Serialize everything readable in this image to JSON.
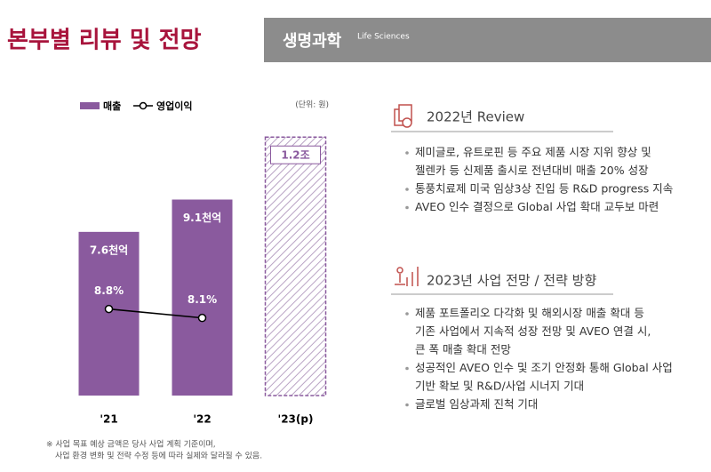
{
  "header": {
    "title": "본부별 리뷰 및 전망",
    "division": "생명과학",
    "division_en": "Life Sciences"
  },
  "chart_data": {
    "type": "bar",
    "unit_note": "(단위: 원)",
    "categories": [
      "'21",
      "'22",
      "'23(p)"
    ],
    "ylim": [
      0,
      13
    ],
    "y2lim": [
      2,
      24
    ],
    "series": [
      {
        "name": "매출",
        "type": "bar",
        "color": "#8a5a9e",
        "values": [
          7.6,
          9.1,
          12
        ],
        "value_labels": [
          "7.6천억",
          "9.1천억",
          "1.2조"
        ],
        "hatched": [
          false,
          false,
          true
        ]
      },
      {
        "name": "영업이익",
        "type": "line",
        "axis": "y2",
        "color": "#000000",
        "values": [
          8.8,
          8.1,
          null
        ],
        "value_labels": [
          "8.8%",
          "8.1%",
          null
        ]
      }
    ]
  },
  "sections": [
    {
      "heading": "2022년 Review",
      "bullets": [
        [
          "제미글로, 유트로핀 등 주요 제품 시장 지위 향상 및",
          "젤렌카 등 신제품 출시로 전년대비 매출 20% 성장"
        ],
        [
          "통풍치료제 미국 임상3상 진입 등 R&D progress 지속"
        ],
        [
          "AVEO 인수 결정으로 Global 사업 확대 교두보 마련"
        ]
      ]
    },
    {
      "heading": "2023년 사업 전망 / 전략 방향",
      "bullets": [
        [
          "제품 포트폴리오 다각화 및 해외시장 매출 확대 등",
          "기존 사업에서 지속적 성장 전망 및 AVEO 연결 시,",
          "큰 폭 매출 확대 전망"
        ],
        [
          "성공적인 AVEO 인수 및 조기 안정화 통해 Global 사업",
          "기반 확보 및 R&D/사업 시너지 기대"
        ],
        [
          "글로벌 임상과제 진척 기대"
        ]
      ]
    }
  ],
  "footnote": [
    "※ 사업 목표 예상 금액은 당사 사업 계획 기준이며,",
    "사업 환경 변화 및 전략 수정 등에 따라 실제와 달라질 수 있음."
  ]
}
